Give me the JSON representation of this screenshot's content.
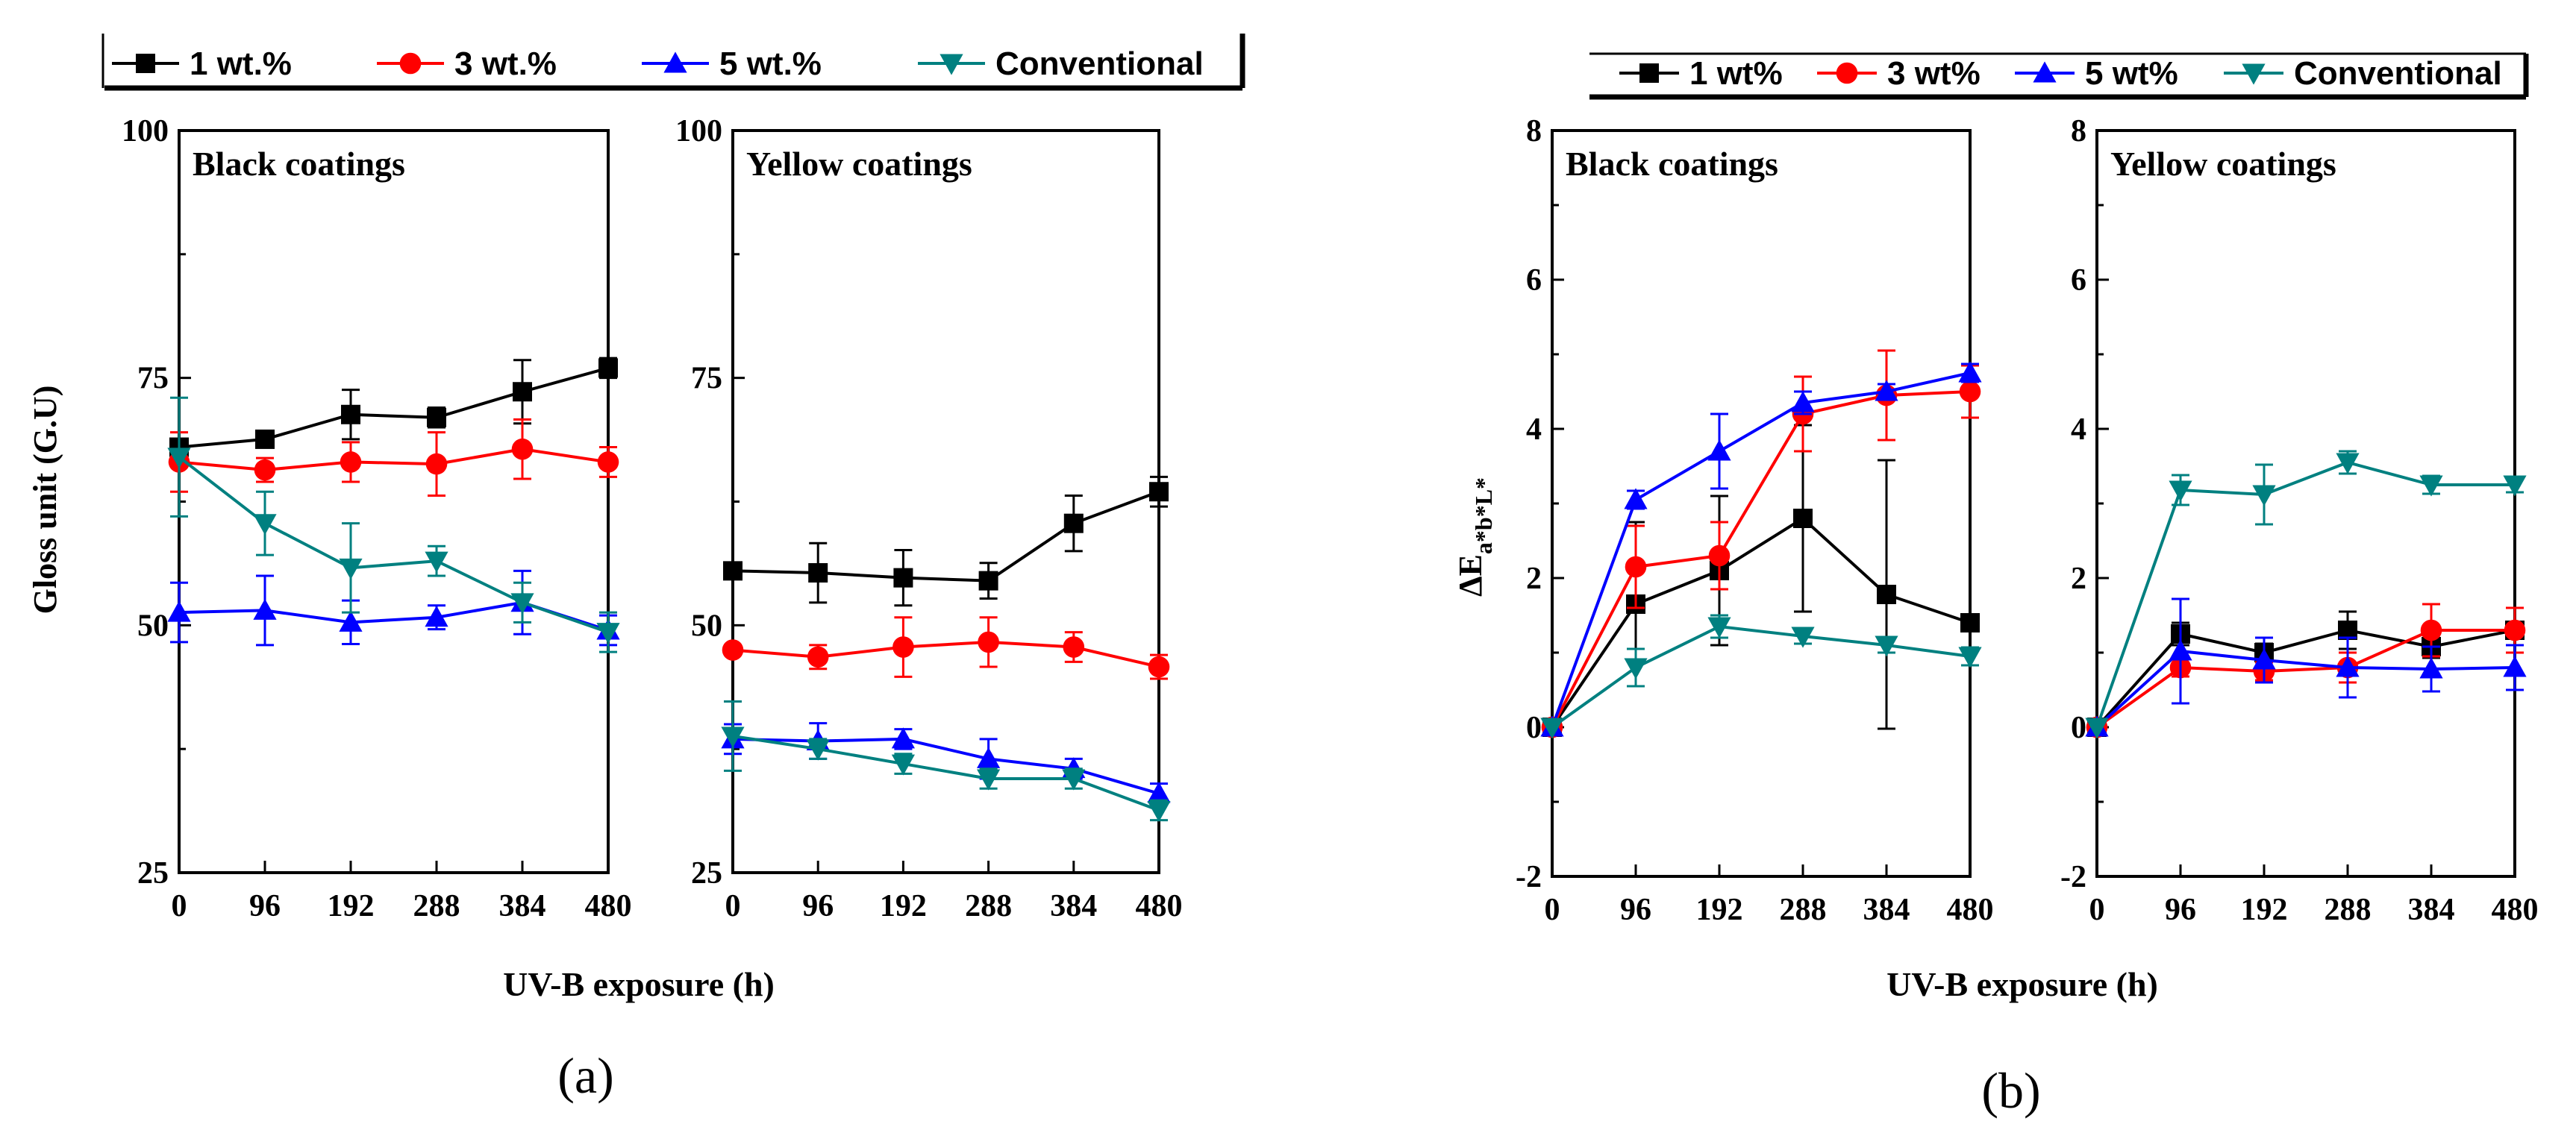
{
  "panel_labels": [
    "(a)",
    "(b)"
  ],
  "chart_data": [
    {
      "type": "line",
      "title": "Black coatings",
      "xlabel": "",
      "ylabel": "Gloss unit (G.U)",
      "x": [
        0,
        96,
        192,
        288,
        384,
        480
      ],
      "xlim": [
        0,
        480
      ],
      "ylim": [
        25,
        100
      ],
      "yticks": [
        25,
        50,
        75,
        100
      ],
      "series": [
        {
          "name": "1 wt.%",
          "values": [
            68,
            68.8,
            71.3,
            71,
            73.6,
            76
          ],
          "errors": [
            0,
            0.8,
            2.5,
            1,
            3.2,
            1
          ]
        },
        {
          "name": "3 wt.%",
          "values": [
            66.5,
            65.7,
            66.5,
            66.3,
            67.8,
            66.5
          ],
          "errors": [
            3,
            1.2,
            2,
            3.2,
            3,
            1.5
          ]
        },
        {
          "name": "5 wt.%",
          "values": [
            51.3,
            51.5,
            50.3,
            50.8,
            52.3,
            49.5
          ],
          "errors": [
            3,
            3.5,
            2.2,
            1.2,
            3.2,
            1.5
          ]
        },
        {
          "name": "Conventional",
          "values": [
            67,
            60.3,
            55.8,
            56.5,
            52.3,
            49.3
          ],
          "errors": [
            6,
            3.2,
            4.5,
            1.5,
            2,
            2
          ]
        }
      ]
    },
    {
      "type": "line",
      "title": "Yellow coatings",
      "xlabel": "",
      "ylabel": "",
      "x": [
        0,
        96,
        192,
        288,
        384,
        480
      ],
      "xlim": [
        0,
        480
      ],
      "ylim": [
        25,
        100
      ],
      "yticks": [
        25,
        50,
        75,
        100
      ],
      "series": [
        {
          "name": "1 wt.%",
          "values": [
            55.5,
            55.3,
            54.8,
            54.5,
            60.3,
            63.5
          ],
          "errors": [
            0.5,
            3,
            2.8,
            1.8,
            2.8,
            1.5
          ]
        },
        {
          "name": "3 wt.%",
          "values": [
            47.5,
            46.8,
            47.8,
            48.3,
            47.8,
            45.8
          ],
          "errors": [
            0.5,
            1.2,
            3,
            2.5,
            1.5,
            1.2
          ]
        },
        {
          "name": "5 wt.%",
          "values": [
            38.5,
            38.3,
            38.5,
            36.5,
            35.5,
            33
          ],
          "errors": [
            1.5,
            1.8,
            1,
            2,
            1,
            1
          ]
        },
        {
          "name": "Conventional",
          "values": [
            38.8,
            37.5,
            36,
            34.5,
            34.5,
            31.3
          ],
          "errors": [
            3.5,
            1,
            1,
            1,
            1,
            1
          ]
        }
      ]
    },
    {
      "type": "line",
      "title": "Black coatings",
      "xlabel": "",
      "ylabel": "ΔE",
      "ylabel_sub": "a*b*L*",
      "x": [
        0,
        96,
        192,
        288,
        384,
        480
      ],
      "xlim": [
        0,
        480
      ],
      "ylim": [
        -2,
        8
      ],
      "yticks": [
        -2,
        0,
        2,
        4,
        6,
        8
      ],
      "series": [
        {
          "name": "1 wt%",
          "values": [
            0,
            1.65,
            2.1,
            2.8,
            1.78,
            1.4
          ],
          "errors": [
            0,
            1.1,
            1,
            1.25,
            1.8,
            0.1
          ]
        },
        {
          "name": "3 wt%",
          "values": [
            0,
            2.15,
            2.3,
            4.2,
            4.45,
            4.5
          ],
          "errors": [
            0,
            0.55,
            0.45,
            0.5,
            0.6,
            0.35
          ]
        },
        {
          "name": "5 wt%",
          "values": [
            0,
            3.05,
            3.7,
            4.35,
            4.5,
            4.75
          ],
          "errors": [
            0,
            0.12,
            0.5,
            0.15,
            0.1,
            0.12
          ]
        },
        {
          "name": "Conventional",
          "values": [
            0,
            0.8,
            1.35,
            1.22,
            1.1,
            0.95
          ],
          "errors": [
            0,
            0.25,
            0.15,
            0.1,
            0.1,
            0.12
          ]
        }
      ]
    },
    {
      "type": "line",
      "title": "Yellow coatings",
      "xlabel": "",
      "ylabel": "",
      "x": [
        0,
        96,
        192,
        288,
        384,
        480
      ],
      "xlim": [
        0,
        480
      ],
      "ylim": [
        -2,
        8
      ],
      "yticks": [
        -2,
        0,
        2,
        4,
        6,
        8
      ],
      "series": [
        {
          "name": "1 wt%",
          "values": [
            0,
            1.25,
            1,
            1.3,
            1.08,
            1.3
          ],
          "errors": [
            0,
            0.15,
            0.12,
            0.25,
            0.15,
            0.1
          ]
        },
        {
          "name": "3 wt%",
          "values": [
            0,
            0.8,
            0.75,
            0.8,
            1.3,
            1.3
          ],
          "errors": [
            0,
            0.12,
            0.12,
            0.2,
            0.35,
            0.3
          ]
        },
        {
          "name": "5 wt%",
          "values": [
            0,
            1.02,
            0.9,
            0.8,
            0.78,
            0.8
          ],
          "errors": [
            0,
            0.7,
            0.3,
            0.4,
            0.3,
            0.3
          ]
        },
        {
          "name": "Conventional",
          "values": [
            0,
            3.18,
            3.12,
            3.55,
            3.25,
            3.25
          ],
          "errors": [
            0,
            0.2,
            0.4,
            0.15,
            0.12,
            0.1
          ]
        }
      ]
    }
  ],
  "shared": {
    "xlabel_a": "UV-B exposure (h)",
    "xlabel_b": "UV-B exposure (h)",
    "legend_a": [
      "1 wt.%",
      "3 wt.%",
      "5 wt.%",
      "Conventional"
    ],
    "legend_b": [
      "1 wt%",
      "3 wt%",
      "5 wt%",
      "Conventional"
    ],
    "colors": {
      "1 wt.%": "#000000",
      "3 wt.%": "#ff0000",
      "5 wt.%": "#0000ff",
      "Conventional": "#008080"
    },
    "markers": [
      "square",
      "circle",
      "triangle-up",
      "triangle-down"
    ]
  }
}
